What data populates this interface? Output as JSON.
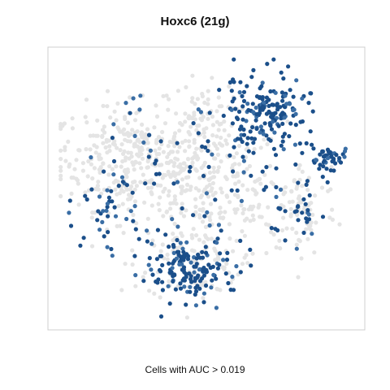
{
  "chart_data": {
    "type": "scatter",
    "title": "Hoxc6 (21g)",
    "caption": "Cells with AUC > 0.019",
    "xlabel": "",
    "ylabel": "",
    "grid": false,
    "axes_ticks": false,
    "colors": {
      "background_cells": "#e4e4e4",
      "high_auc": "#1b4f8a",
      "mid_auc": "#3a6ea5",
      "frame": "#cfcfcf"
    },
    "xlim": [
      0,
      100
    ],
    "ylim": [
      0,
      100
    ],
    "clusters": [
      {
        "group": "high",
        "cx": 70,
        "cy": 79,
        "sx": 7,
        "sy": 7,
        "n": 170
      },
      {
        "group": "high",
        "cx": 91,
        "cy": 61,
        "sx": 3.5,
        "sy": 2.5,
        "n": 45
      },
      {
        "group": "high",
        "cx": 45,
        "cy": 19,
        "sx": 8,
        "sy": 6,
        "n": 150
      },
      {
        "group": "high",
        "cx": 17,
        "cy": 45,
        "sx": 5,
        "sy": 7,
        "n": 40
      },
      {
        "group": "high",
        "cx": 82,
        "cy": 45,
        "sx": 4,
        "sy": 8,
        "n": 30
      },
      {
        "group": "high",
        "cx": 50,
        "cy": 54,
        "sx": 17,
        "sy": 16,
        "n": 90
      },
      {
        "group": "bg",
        "cx": 25,
        "cy": 62,
        "sx": 13,
        "sy": 10,
        "n": 320
      },
      {
        "group": "bg",
        "cx": 51,
        "cy": 47,
        "sx": 13,
        "sy": 14,
        "n": 280
      },
      {
        "group": "bg",
        "cx": 82,
        "cy": 42,
        "sx": 6,
        "sy": 9,
        "n": 80
      },
      {
        "group": "bg",
        "cx": 46,
        "cy": 20,
        "sx": 8,
        "sy": 6,
        "n": 60
      },
      {
        "group": "bg",
        "cx": 48,
        "cy": 78,
        "sx": 6,
        "sy": 6,
        "n": 50
      }
    ]
  }
}
